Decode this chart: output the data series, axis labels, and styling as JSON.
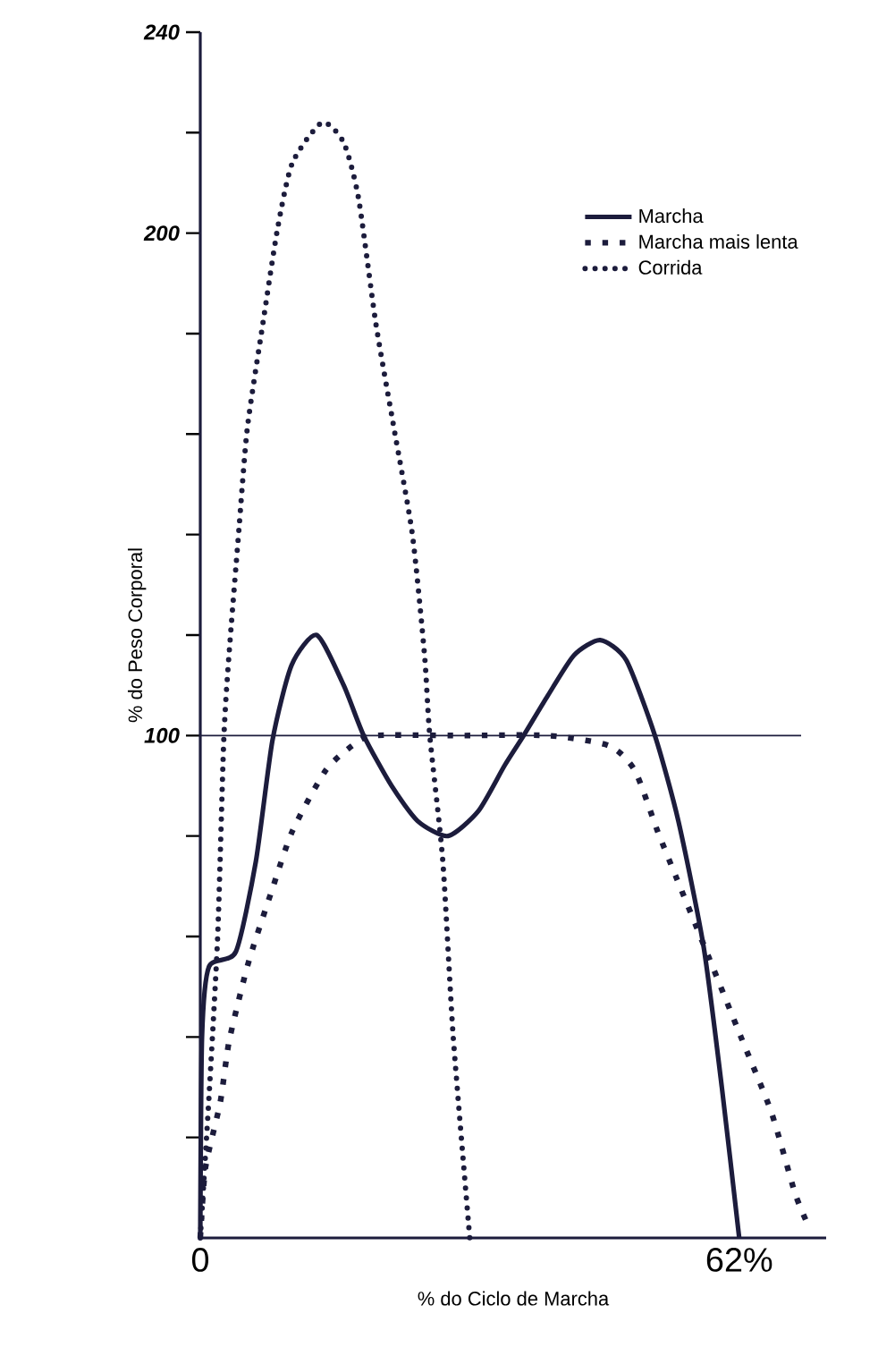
{
  "chart_data": {
    "type": "line",
    "xlabel": "% do Ciclo de Marcha",
    "ylabel": "% do Peso Corporal",
    "xlim": [
      0,
      72
    ],
    "ylim": [
      0,
      240
    ],
    "xticks": [
      {
        "value": 0,
        "label": "0"
      },
      {
        "value": 62,
        "label": "62%"
      }
    ],
    "yticks": [
      {
        "value": 20,
        "label": null
      },
      {
        "value": 40,
        "label": null
      },
      {
        "value": 60,
        "label": null
      },
      {
        "value": 80,
        "label": null
      },
      100,
      {
        "value": 120,
        "label": null
      },
      {
        "value": 140,
        "label": null
      },
      {
        "value": 160,
        "label": null
      },
      {
        "value": 180,
        "label": null
      },
      200,
      {
        "value": 220,
        "label": null
      },
      240
    ],
    "legend": "top right",
    "ref_lines": [
      {
        "axis": "y",
        "value": 100,
        "color": "#1c1c3c"
      }
    ],
    "series": [
      {
        "name": "Marcha",
        "color": "#1c1c3c",
        "line_style": "solid",
        "x": [
          0,
          0.2,
          1,
          4.1,
          6.4,
          8.3,
          10.5,
          13.4,
          16.5,
          18.8,
          22,
          25,
          28.5,
          32,
          35,
          37.2,
          40,
          43,
          46,
          49,
          52.3,
          55,
          57.9,
          60,
          62
        ],
        "values": [
          0,
          40,
          54,
          57,
          75,
          99,
          114,
          120,
          110,
          100,
          90,
          83,
          80,
          85,
          94,
          100,
          108,
          116,
          119,
          115,
          100,
          83,
          58,
          30,
          0
        ]
      },
      {
        "name": "Marcha mais lenta",
        "color": "#1c1c3c",
        "line_style": "dashed",
        "x": [
          0,
          0.6,
          2.3,
          3.3,
          5.1,
          6.1,
          8.2,
          10.6,
          14.4,
          17.5,
          20,
          30,
          40,
          47,
          50,
          52.6,
          54.7,
          58,
          62.2,
          65.7,
          68.4,
          69.8
        ],
        "values": [
          0,
          14,
          27,
          39,
          52,
          58,
          69,
          81,
          93,
          98,
          100,
          100,
          100,
          98,
          93,
          81,
          72,
          58,
          40,
          25,
          9,
          3
        ]
      },
      {
        "name": "Corrida",
        "color": "#1c1c3c",
        "line_style": "dotted",
        "x": [
          0,
          1,
          2,
          2.7,
          3.3,
          4.4,
          5.4,
          7.2,
          8.9,
          10.6,
          14,
          16.5,
          18.2,
          20.2,
          22.3,
          24.4,
          25.8,
          26.4,
          27.9,
          29.1,
          31
        ],
        "values": [
          0,
          28,
          60,
          99,
          116,
          140,
          161,
          182,
          201,
          214,
          222,
          218,
          207,
          182,
          161,
          140,
          116,
          100,
          75,
          40,
          0
        ]
      }
    ]
  }
}
